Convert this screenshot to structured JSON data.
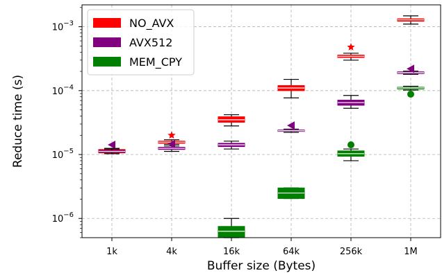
{
  "chart_data": {
    "type": "box",
    "xlabel": "Buffer size (Bytes)",
    "ylabel": "Reduce time (s)",
    "yscale": "log",
    "ylim": [
      5e-07,
      0.0022
    ],
    "yticks": [
      {
        "value": 1e-06,
        "base": "10",
        "exp": "−6"
      },
      {
        "value": 1e-05,
        "base": "10",
        "exp": "−5"
      },
      {
        "value": 0.0001,
        "base": "10",
        "exp": "−4"
      },
      {
        "value": 0.001,
        "base": "10",
        "exp": "−3"
      }
    ],
    "categories": [
      "1k",
      "4k",
      "16k",
      "64k",
      "256k",
      "1M"
    ],
    "grid": true,
    "legend_position": "top-left",
    "series": [
      {
        "name": "NO_AVX",
        "color": "#ff0000",
        "flier_marker": "star",
        "offset": 0,
        "boxes": [
          {
            "q1": 1.06e-05,
            "q3": 1.2e-05,
            "median": 1.12e-05,
            "whislo": 1.03e-05,
            "whishi": 1.25e-05,
            "fliers": []
          },
          {
            "q1": 1.5e-05,
            "q3": 1.62e-05,
            "median": 1.56e-05,
            "whislo": 1.44e-05,
            "whishi": 1.7e-05,
            "fliers": [
              2e-05
            ]
          },
          {
            "q1": 3.2e-05,
            "q3": 3.9e-05,
            "median": 3.5e-05,
            "whislo": 2.8e-05,
            "whishi": 4.2e-05,
            "fliers": []
          },
          {
            "q1": 0.0001,
            "q3": 0.00012,
            "median": 0.00011,
            "whislo": 7.7e-05,
            "whishi": 0.00015,
            "fliers": []
          },
          {
            "q1": 0.00033,
            "q3": 0.00036,
            "median": 0.000345,
            "whislo": 0.0003,
            "whishi": 0.000385,
            "fliers": [
              0.00048
            ]
          },
          {
            "q1": 0.00122,
            "q3": 0.00133,
            "median": 0.00128,
            "whislo": 0.0011,
            "whishi": 0.00148,
            "fliers": []
          }
        ]
      },
      {
        "name": "AVX512",
        "color": "#800080",
        "flier_marker": "triangle-left",
        "offset": 0,
        "boxes": [
          {
            "q1": 1.08e-05,
            "q3": 1.16e-05,
            "median": 1.12e-05,
            "whislo": 1.03e-05,
            "whishi": 1.22e-05,
            "fliers": [
              1.42e-05
            ]
          },
          {
            "q1": 1.2e-05,
            "q3": 1.3e-05,
            "median": 1.25e-05,
            "whislo": 1.12e-05,
            "whishi": 1.36e-05,
            "fliers": [
              1.46e-05
            ]
          },
          {
            "q1": 1.33e-05,
            "q3": 1.5e-05,
            "median": 1.42e-05,
            "whislo": 1.22e-05,
            "whishi": 1.62e-05,
            "fliers": []
          },
          {
            "q1": 2.3e-05,
            "q3": 2.42e-05,
            "median": 2.36e-05,
            "whislo": 2.22e-05,
            "whishi": 2.5e-05,
            "fliers": [
              2.85e-05
            ]
          },
          {
            "q1": 5.9e-05,
            "q3": 7.1e-05,
            "median": 6.5e-05,
            "whislo": 5.3e-05,
            "whishi": 8.4e-05,
            "fliers": []
          },
          {
            "q1": 0.000185,
            "q3": 0.000197,
            "median": 0.000191,
            "whislo": 0.00018,
            "whishi": 0.000202,
            "fliers": [
              0.00022
            ]
          }
        ]
      },
      {
        "name": "MEM_CPY",
        "color": "#008000",
        "flier_marker": "circle",
        "offset": 0,
        "boxes": [
          null,
          null,
          {
            "q1": 5e-07,
            "q3": 7.5e-07,
            "median": 6.3e-07,
            "whislo": 5e-07,
            "whishi": 1e-06,
            "fliers": []
          },
          {
            "q1": 2.05e-06,
            "q3": 3e-06,
            "median": 2.5e-06,
            "whislo": 2.05e-06,
            "whishi": 3e-06,
            "fliers": []
          },
          {
            "q1": 9.4e-06,
            "q3": 1.14e-05,
            "median": 1.03e-05,
            "whislo": 8e-06,
            "whishi": 1.22e-05,
            "fliers": [
              1.42e-05
            ]
          },
          {
            "q1": 0.000106,
            "q3": 0.000113,
            "median": 0.00011,
            "whislo": 0.000102,
            "whishi": 0.000117,
            "fliers": [
              8.8e-05
            ]
          }
        ]
      }
    ]
  }
}
